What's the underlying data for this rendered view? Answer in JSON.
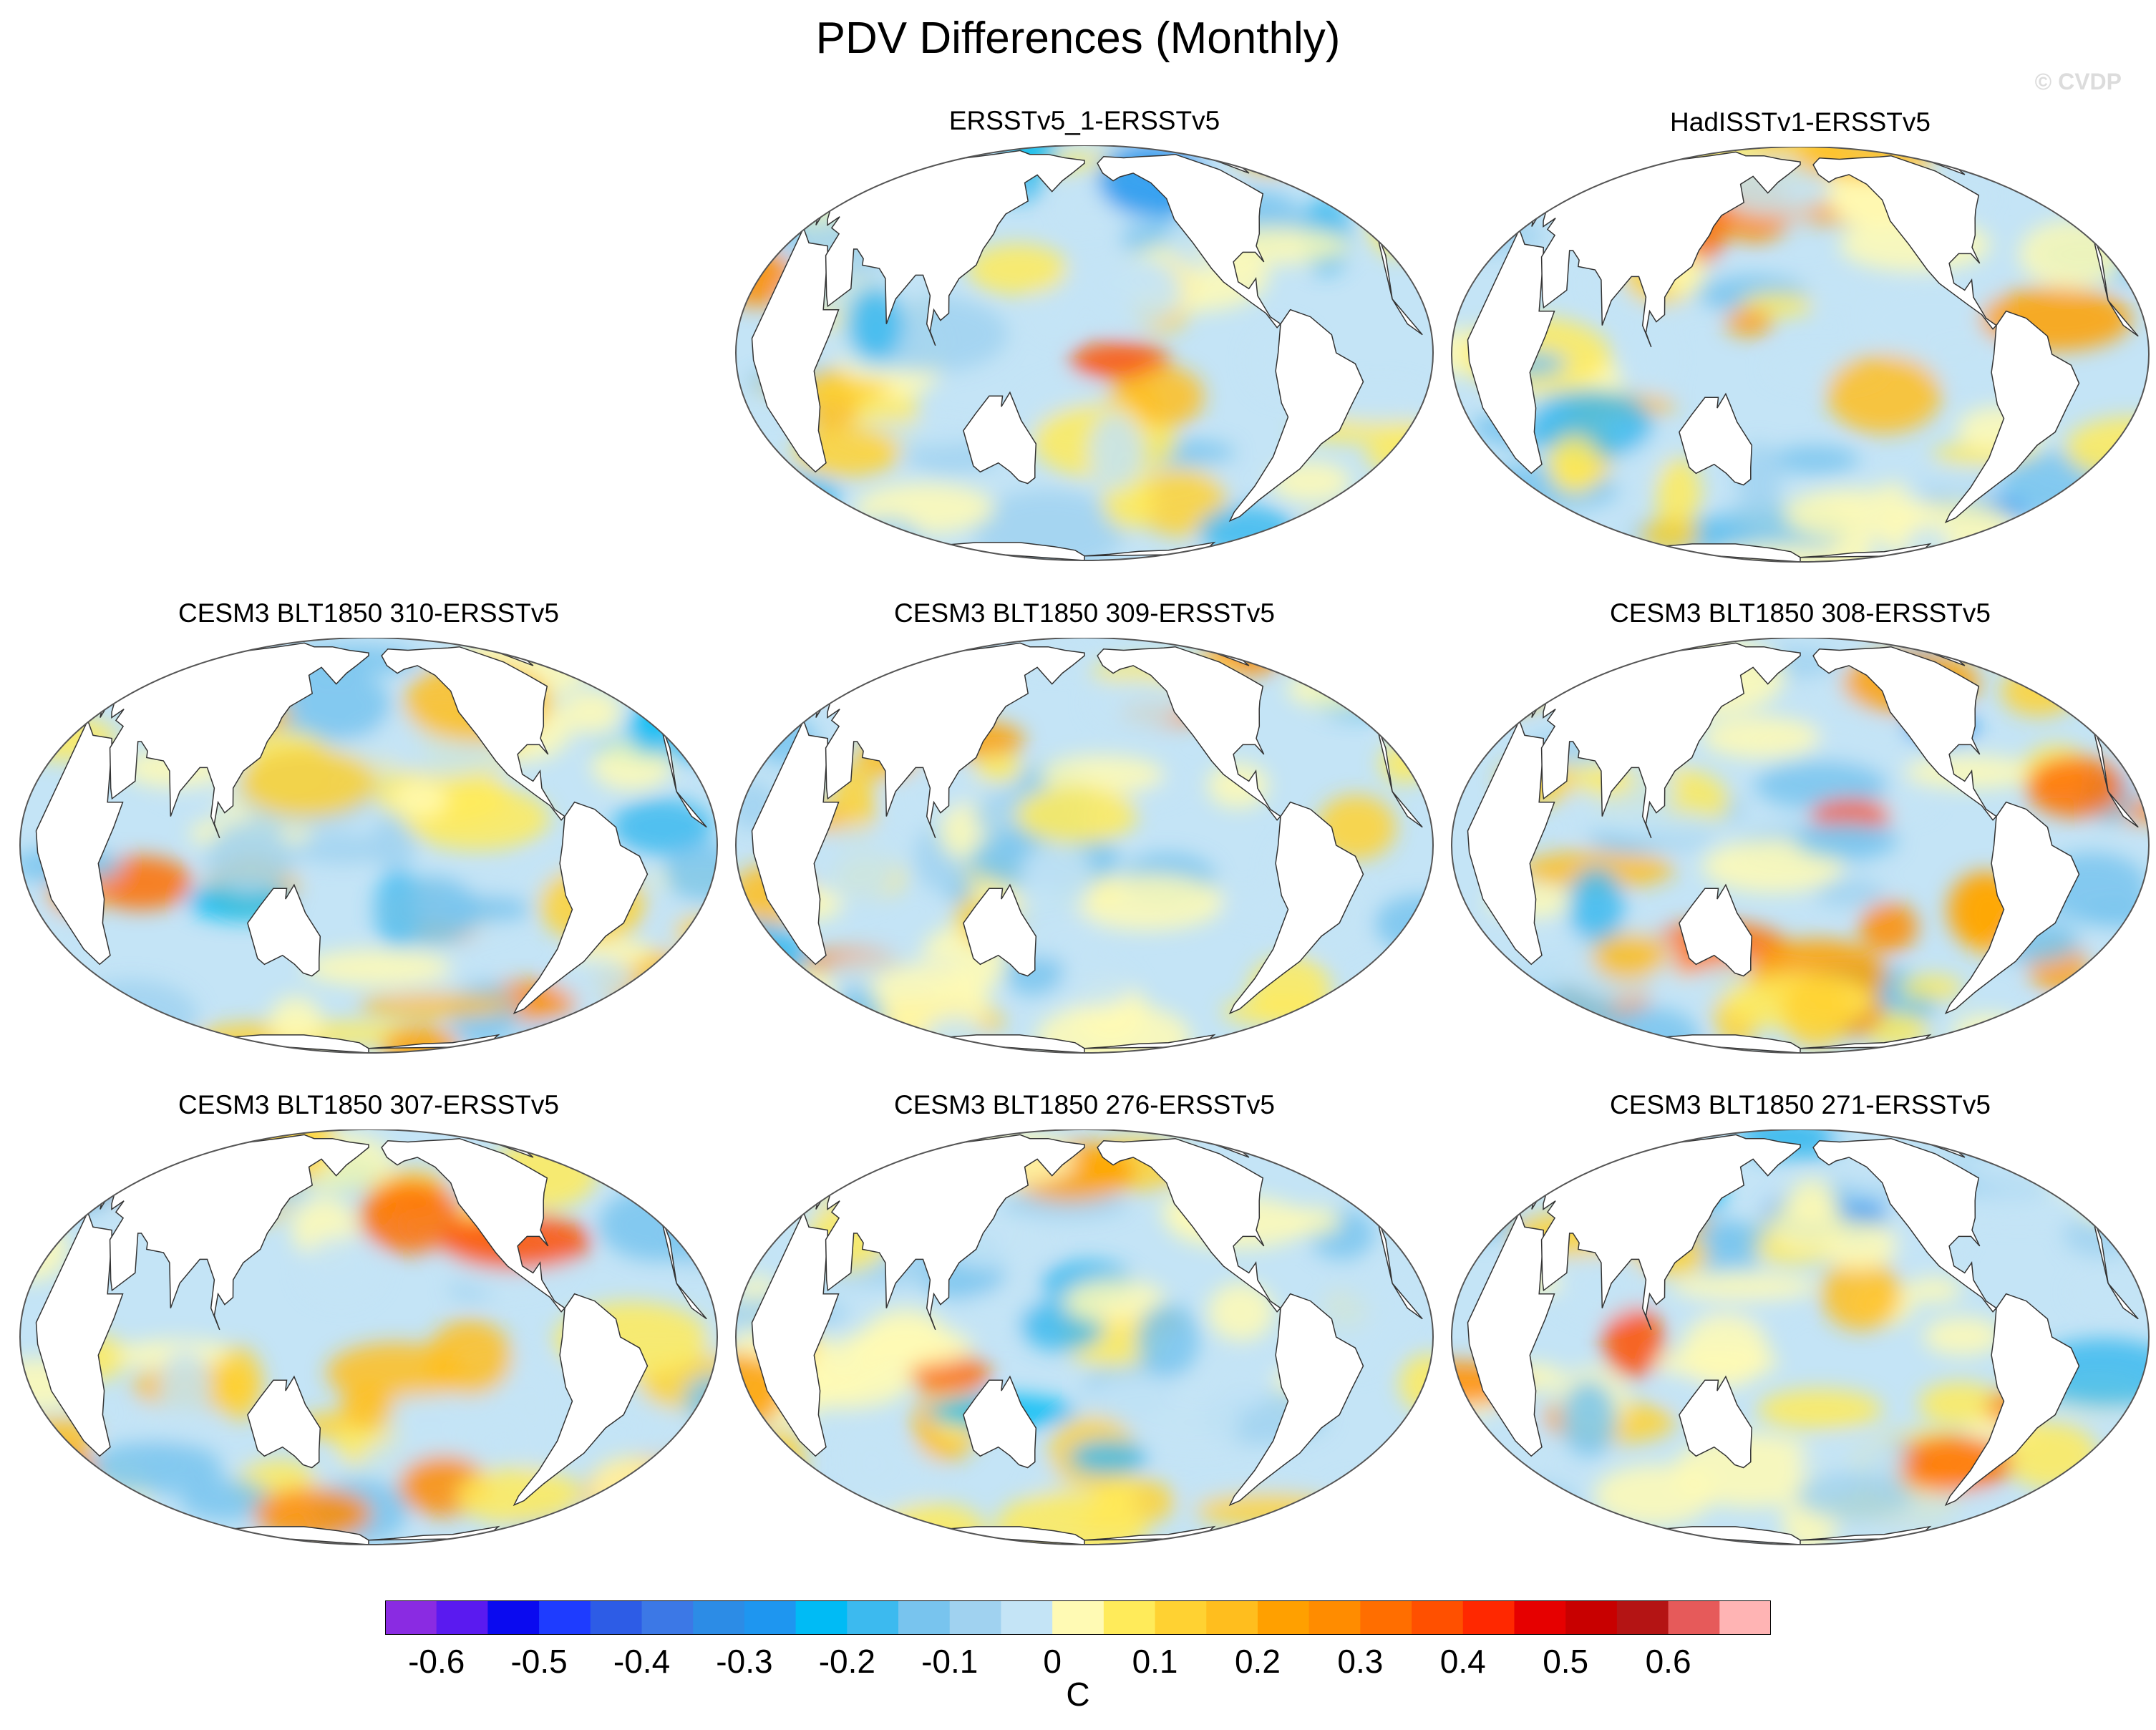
{
  "figure": {
    "title": "PDV Differences (Monthly)",
    "watermark": "© CVDP"
  },
  "panels": [
    {
      "title": "ERSSTv5_1-ERSSTv5"
    },
    {
      "title": "HadISSTv1-ERSSTv5"
    },
    {
      "title": "CESM3 BLT1850 310-ERSSTv5"
    },
    {
      "title": "CESM3 BLT1850 309-ERSSTv5"
    },
    {
      "title": "CESM3 BLT1850 308-ERSSTv5"
    },
    {
      "title": "CESM3 BLT1850 307-ERSSTv5"
    },
    {
      "title": "CESM3 BLT1850 276-ERSSTv5"
    },
    {
      "title": "CESM3 BLT1850 271-ERSSTv5"
    }
  ],
  "colorbar": {
    "units": "C",
    "labels": [
      "-0.6",
      "-0.5",
      "-0.4",
      "-0.3",
      "-0.2",
      "-0.1",
      "0",
      "0.1",
      "0.2",
      "0.3",
      "0.4",
      "0.5",
      "0.6"
    ],
    "colors": [
      "#8a2be2",
      "#5a1af0",
      "#0a0af0",
      "#1e3cff",
      "#2d5ce6",
      "#3c78e6",
      "#2c8ce6",
      "#1e96f0",
      "#00bbf5",
      "#3cbaef",
      "#78c4ee",
      "#a0d2f0",
      "#c4e4f6",
      "#fffab4",
      "#ffeb5a",
      "#ffd232",
      "#ffbe1e",
      "#ffa000",
      "#ff8c00",
      "#ff6e00",
      "#ff5000",
      "#ff2800",
      "#e60000",
      "#c80000",
      "#b41414",
      "#e65a5a",
      "#ffb4b4"
    ]
  }
}
